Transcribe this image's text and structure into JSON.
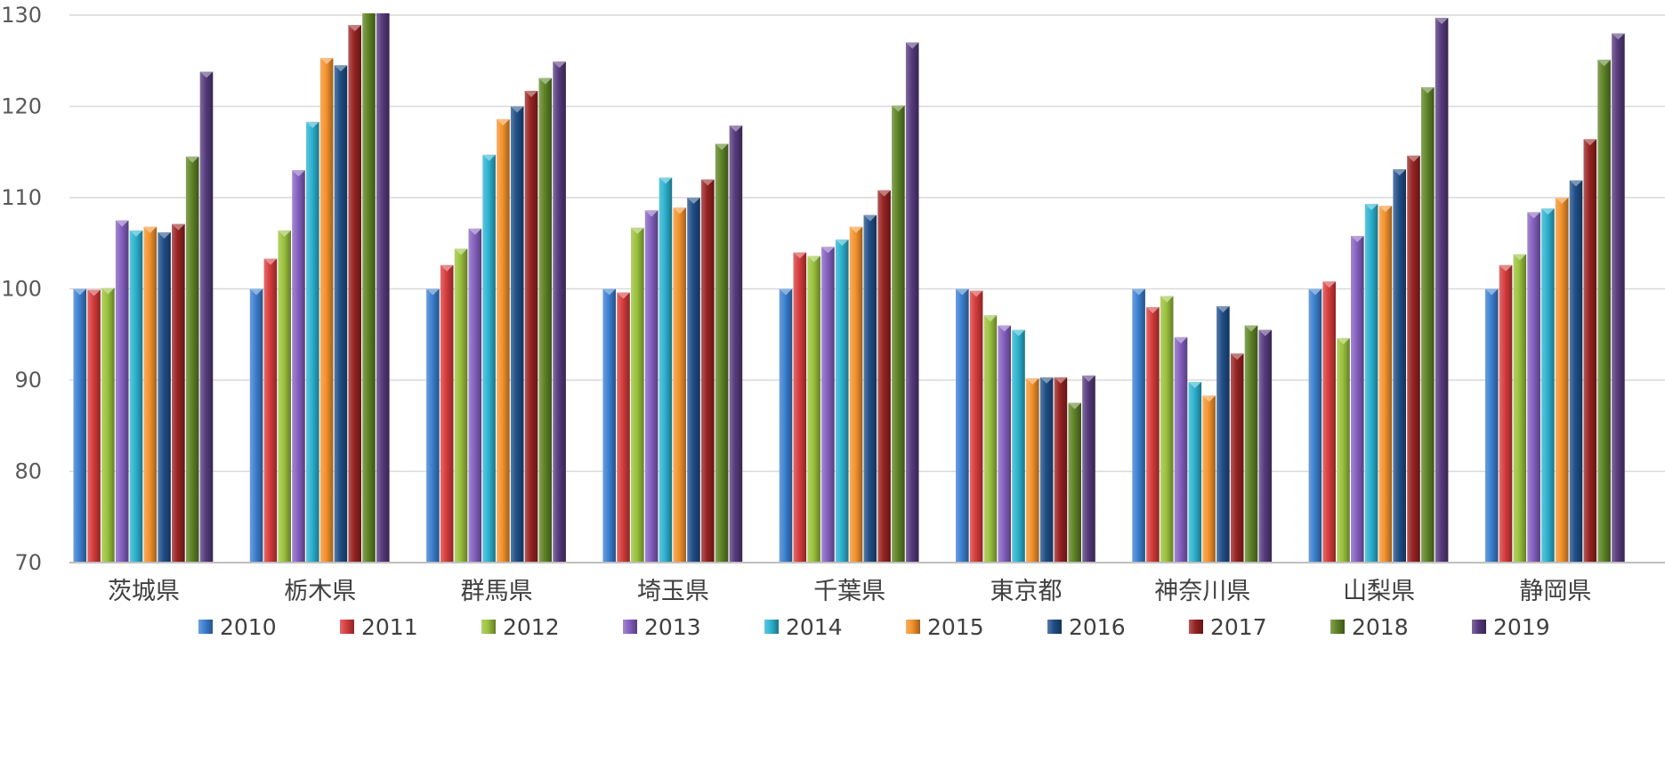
{
  "chart_data": {
    "type": "bar",
    "title": "",
    "xlabel": "",
    "ylabel": "",
    "ylim": [
      70,
      130
    ],
    "yticks": [
      70,
      80,
      90,
      100,
      110,
      120,
      130
    ],
    "grid": true,
    "legend_position": "bottom",
    "categories": [
      "茨城県",
      "栃木県",
      "群馬県",
      "埼玉県",
      "千葉県",
      "東京都",
      "神奈川県",
      "山梨県",
      "静岡県"
    ],
    "series": [
      {
        "name": "2010",
        "color": "#3b7fd0",
        "values": [
          100,
          100,
          100,
          100,
          100,
          100,
          100,
          100,
          100
        ]
      },
      {
        "name": "2011",
        "color": "#d63b3b",
        "values": [
          99.9,
          103.3,
          102.6,
          99.6,
          104.0,
          99.8,
          98.0,
          100.8,
          102.6
        ]
      },
      {
        "name": "2012",
        "color": "#9ac23c",
        "values": [
          100.1,
          106.4,
          104.4,
          106.7,
          103.6,
          97.1,
          99.2,
          94.6,
          103.8
        ]
      },
      {
        "name": "2013",
        "color": "#8560c0",
        "values": [
          107.5,
          113.0,
          106.6,
          108.6,
          104.6,
          96.0,
          94.7,
          105.8,
          108.4
        ]
      },
      {
        "name": "2014",
        "color": "#2cb2d0",
        "values": [
          106.4,
          118.3,
          114.7,
          112.2,
          105.4,
          95.5,
          89.8,
          109.3,
          108.8
        ]
      },
      {
        "name": "2015",
        "color": "#f4922c",
        "values": [
          106.8,
          125.3,
          118.6,
          108.9,
          106.8,
          90.2,
          88.3,
          109.1,
          110.0
        ]
      },
      {
        "name": "2016",
        "color": "#1f4e87",
        "values": [
          106.2,
          124.5,
          120.0,
          110.0,
          108.1,
          90.3,
          98.1,
          113.1,
          111.9
        ]
      },
      {
        "name": "2017",
        "color": "#972222",
        "values": [
          107.1,
          128.9,
          121.7,
          112.0,
          110.8,
          90.3,
          92.9,
          114.6,
          116.4
        ]
      },
      {
        "name": "2018",
        "color": "#5e8325",
        "values": [
          114.5,
          131.7,
          123.1,
          115.9,
          120.1,
          87.5,
          96.0,
          122.1,
          125.1
        ]
      },
      {
        "name": "2019",
        "color": "#553a7c",
        "values": [
          123.8,
          131.7,
          124.9,
          117.9,
          127.0,
          90.5,
          95.5,
          129.7,
          128.0
        ]
      }
    ]
  }
}
